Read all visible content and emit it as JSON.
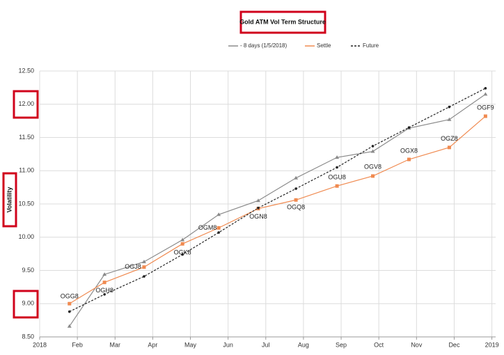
{
  "chart_data": {
    "type": "line",
    "title": "Gold ATM Vol Term Structure",
    "y_label": "Volatility",
    "x": [
      0.79,
      1.72,
      2.77,
      3.79,
      4.75,
      5.8,
      6.8,
      7.89,
      8.84,
      9.8,
      10.87,
      11.83
    ],
    "xlim": [
      0,
      12.1
    ],
    "xticks": [
      {
        "value": 0,
        "label": "2018"
      },
      {
        "value": 1,
        "label": "Feb"
      },
      {
        "value": 2,
        "label": "Mar"
      },
      {
        "value": 3,
        "label": "Apr"
      },
      {
        "value": 4,
        "label": "May"
      },
      {
        "value": 5,
        "label": "Jun"
      },
      {
        "value": 6,
        "label": "Jul"
      },
      {
        "value": 7,
        "label": "Aug"
      },
      {
        "value": 8,
        "label": "Sep"
      },
      {
        "value": 9,
        "label": "Oct"
      },
      {
        "value": 10,
        "label": "Nov"
      },
      {
        "value": 11,
        "label": "Dec"
      },
      {
        "value": 12,
        "label": "2019"
      }
    ],
    "ylim": [
      8.5,
      12.5
    ],
    "yticks": [
      {
        "value": 8.5,
        "label": "8.50"
      },
      {
        "value": 9,
        "label": "9.00"
      },
      {
        "value": 9.5,
        "label": "9.50"
      },
      {
        "value": 10,
        "label": "10.00"
      },
      {
        "value": 10.5,
        "label": "10.50"
      },
      {
        "value": 11,
        "label": "11.00"
      },
      {
        "value": 11.5,
        "label": "11.50"
      },
      {
        "value": 12,
        "label": "12.00"
      },
      {
        "value": 12.5,
        "label": "12.50"
      }
    ],
    "grid": true,
    "point_labels": [
      "OGG8",
      "OGH8",
      "OGJ8",
      "OGK8",
      "OGM8",
      "OGN8",
      "OGQ8",
      "OGU8",
      "OGV8",
      "OGX8",
      "OGZ8",
      "OGF9"
    ],
    "series": [
      {
        "name": "- 8 days (1/5/2018)",
        "color": "#8a8a8a",
        "marker": "triangle",
        "values": [
          8.66,
          9.44,
          9.63,
          9.96,
          10.34,
          10.55,
          10.89,
          11.2,
          11.29,
          11.64,
          11.77,
          12.15
        ]
      },
      {
        "name": "Settle",
        "color": "#f08a50",
        "marker": "square",
        "values": [
          9.0,
          9.32,
          9.55,
          9.9,
          10.14,
          10.43,
          10.56,
          10.77,
          10.92,
          11.17,
          11.35,
          11.82
        ]
      },
      {
        "name": "Future",
        "color": "#222222",
        "marker": "dot",
        "dashed": true,
        "values": [
          8.88,
          9.14,
          9.41,
          9.74,
          10.07,
          10.44,
          10.73,
          11.05,
          11.37,
          11.65,
          11.96,
          12.24
        ]
      }
    ]
  }
}
